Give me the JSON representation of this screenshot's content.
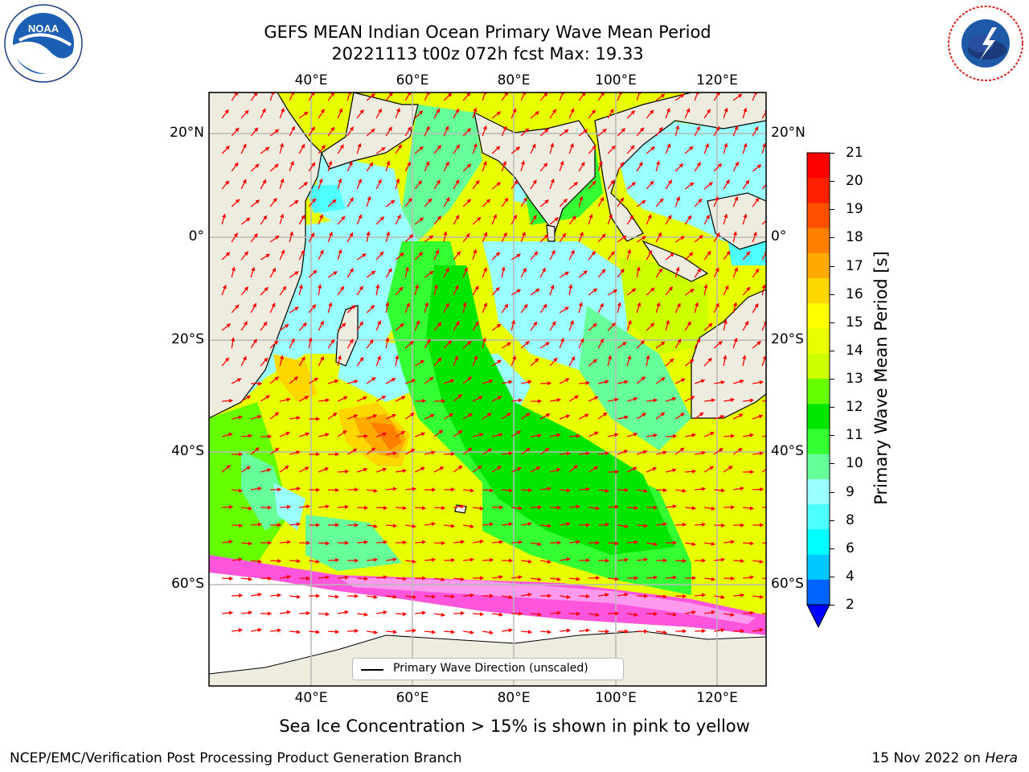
{
  "header": {
    "title_line1": "GEFS MEAN Indian Ocean Primary Wave Mean Period",
    "title_line2": "20221113 t00z 072h fcst   Max: 19.33"
  },
  "logos": {
    "noaa_text": "NOAA",
    "noaa_ring_text": "NATIONAL OCEANIC AND ATMOSPHERIC ADMINISTRATION · U.S. DEPARTMENT OF COMMERCE",
    "nws_ring_text": "NATIONAL WEATHER SERVICE"
  },
  "map": {
    "lon_labels": [
      "40°E",
      "60°E",
      "80°E",
      "100°E",
      "120°E"
    ],
    "lat_labels": [
      "20°N",
      "0°",
      "20°S",
      "40°S",
      "60°S"
    ],
    "legend_label": "Primary Wave Direction (unscaled)",
    "colors": {
      "land": "#eeecdf",
      "gridline": "#b8b8b8",
      "arrow": "#ff0000",
      "sea_ice": "#ff55dd"
    }
  },
  "colorbar": {
    "title": "Primary Wave Mean Period [s]",
    "tick_labels": [
      "2",
      "4",
      "6",
      "8",
      "9",
      "10",
      "11",
      "12",
      "13",
      "14",
      "15",
      "16",
      "17",
      "18",
      "19",
      "20",
      "21"
    ],
    "colors": [
      "#0064ff",
      "#00c8ff",
      "#00ffff",
      "#4dffff",
      "#99ffff",
      "#66ff99",
      "#33ff33",
      "#00e600",
      "#66ff00",
      "#ccff00",
      "#e8ff00",
      "#ffff00",
      "#ffd700",
      "#ffaa00",
      "#ff8000",
      "#ff5000",
      "#ff2000",
      "#ff0000"
    ],
    "extend_color": "#0000ff"
  },
  "subtitle": "Sea Ice Concentration > 15% is shown in pink to yellow",
  "footer": {
    "left": "NCEP/EMC/Verification Post Processing Product Generation Branch",
    "date": "15 Nov 2022 on ",
    "host": "Hera"
  }
}
